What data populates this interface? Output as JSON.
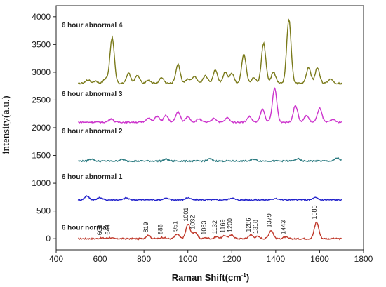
{
  "chart_data": {
    "type": "line",
    "xlabel": "Raman Shift(cm",
    "xlabel_sup": "-1",
    "xlabel_suffix": ")",
    "ylabel": "intensity(a.u.)",
    "xlim": [
      400,
      1800
    ],
    "ylim": [
      -200,
      4200
    ],
    "x_ticks": [
      400,
      600,
      800,
      1000,
      1200,
      1400,
      1600,
      1800
    ],
    "y_ticks": [
      0,
      500,
      1000,
      1500,
      2000,
      2500,
      3000,
      3500,
      4000
    ],
    "grid": false,
    "series": [
      {
        "name": "6 hour normal",
        "color": "#c0392b",
        "baseline": 0,
        "label_pos": [
          425,
          160
        ],
        "peaks": [
          {
            "x": 608,
            "y": 12
          },
          {
            "x": 644,
            "y": 20
          },
          {
            "x": 819,
            "y": 60
          },
          {
            "x": 885,
            "y": 25
          },
          {
            "x": 951,
            "y": 80
          },
          {
            "x": 1001,
            "y": 260
          },
          {
            "x": 1032,
            "y": 120
          },
          {
            "x": 1083,
            "y": 20
          },
          {
            "x": 1132,
            "y": 35
          },
          {
            "x": 1169,
            "y": 55
          },
          {
            "x": 1200,
            "y": 65
          },
          {
            "x": 1286,
            "y": 70
          },
          {
            "x": 1318,
            "y": 40
          },
          {
            "x": 1379,
            "y": 150
          },
          {
            "x": 1443,
            "y": 30
          },
          {
            "x": 1586,
            "y": 300
          }
        ],
        "peak_labels": [
          "608",
          "644",
          "819",
          "885",
          "951",
          "1001",
          "1032",
          "1083",
          "1132",
          "1169",
          "1200",
          "1286",
          "1318",
          "1379",
          "1443",
          "1586"
        ]
      },
      {
        "name": "6 hour abnormal 1",
        "color": "#2222cc",
        "baseline": 700,
        "label_pos": [
          425,
          1080
        ],
        "peaks": [
          {
            "x": 540,
            "y": 70
          },
          {
            "x": 600,
            "y": 40
          },
          {
            "x": 720,
            "y": 35
          },
          {
            "x": 900,
            "y": 30
          },
          {
            "x": 1000,
            "y": 40
          },
          {
            "x": 1200,
            "y": 35
          },
          {
            "x": 1400,
            "y": 30
          },
          {
            "x": 1580,
            "y": 40
          }
        ],
        "peak_labels": []
      },
      {
        "name": "6 hour abnormal 2",
        "color": "#2a7a80",
        "baseline": 1400,
        "label_pos": [
          425,
          1900
        ],
        "peaks": [
          {
            "x": 560,
            "y": 40
          },
          {
            "x": 700,
            "y": 30
          },
          {
            "x": 900,
            "y": 35
          },
          {
            "x": 1100,
            "y": 40
          },
          {
            "x": 1300,
            "y": 35
          },
          {
            "x": 1500,
            "y": 40
          },
          {
            "x": 1680,
            "y": 55
          }
        ],
        "peak_labels": []
      },
      {
        "name": "6 hour abnormal 3",
        "color": "#cc33cc",
        "baseline": 2100,
        "label_pos": [
          425,
          2570
        ],
        "peaks": [
          {
            "x": 650,
            "y": 60
          },
          {
            "x": 820,
            "y": 80
          },
          {
            "x": 860,
            "y": 110
          },
          {
            "x": 900,
            "y": 120
          },
          {
            "x": 955,
            "y": 190
          },
          {
            "x": 1000,
            "y": 100
          },
          {
            "x": 1050,
            "y": 60
          },
          {
            "x": 1120,
            "y": 70
          },
          {
            "x": 1180,
            "y": 80
          },
          {
            "x": 1280,
            "y": 100
          },
          {
            "x": 1340,
            "y": 230
          },
          {
            "x": 1395,
            "y": 610
          },
          {
            "x": 1490,
            "y": 300
          },
          {
            "x": 1540,
            "y": 120
          },
          {
            "x": 1600,
            "y": 250
          },
          {
            "x": 1660,
            "y": 50
          }
        ],
        "peak_labels": []
      },
      {
        "name": "6 hour abnormal 4",
        "color": "#7a7a1a",
        "baseline": 2800,
        "label_pos": [
          425,
          3810
        ],
        "peaks": [
          {
            "x": 545,
            "y": 60
          },
          {
            "x": 580,
            "y": 40
          },
          {
            "x": 625,
            "y": 80
          },
          {
            "x": 655,
            "y": 820
          },
          {
            "x": 730,
            "y": 180
          },
          {
            "x": 770,
            "y": 140
          },
          {
            "x": 820,
            "y": 60
          },
          {
            "x": 880,
            "y": 100
          },
          {
            "x": 955,
            "y": 340
          },
          {
            "x": 1000,
            "y": 80
          },
          {
            "x": 1030,
            "y": 120
          },
          {
            "x": 1080,
            "y": 140
          },
          {
            "x": 1125,
            "y": 240
          },
          {
            "x": 1170,
            "y": 200
          },
          {
            "x": 1200,
            "y": 180
          },
          {
            "x": 1255,
            "y": 530
          },
          {
            "x": 1300,
            "y": 100
          },
          {
            "x": 1345,
            "y": 720
          },
          {
            "x": 1390,
            "y": 200
          },
          {
            "x": 1460,
            "y": 1150
          },
          {
            "x": 1550,
            "y": 280
          },
          {
            "x": 1590,
            "y": 280
          },
          {
            "x": 1650,
            "y": 80
          }
        ],
        "peak_labels": []
      }
    ]
  }
}
